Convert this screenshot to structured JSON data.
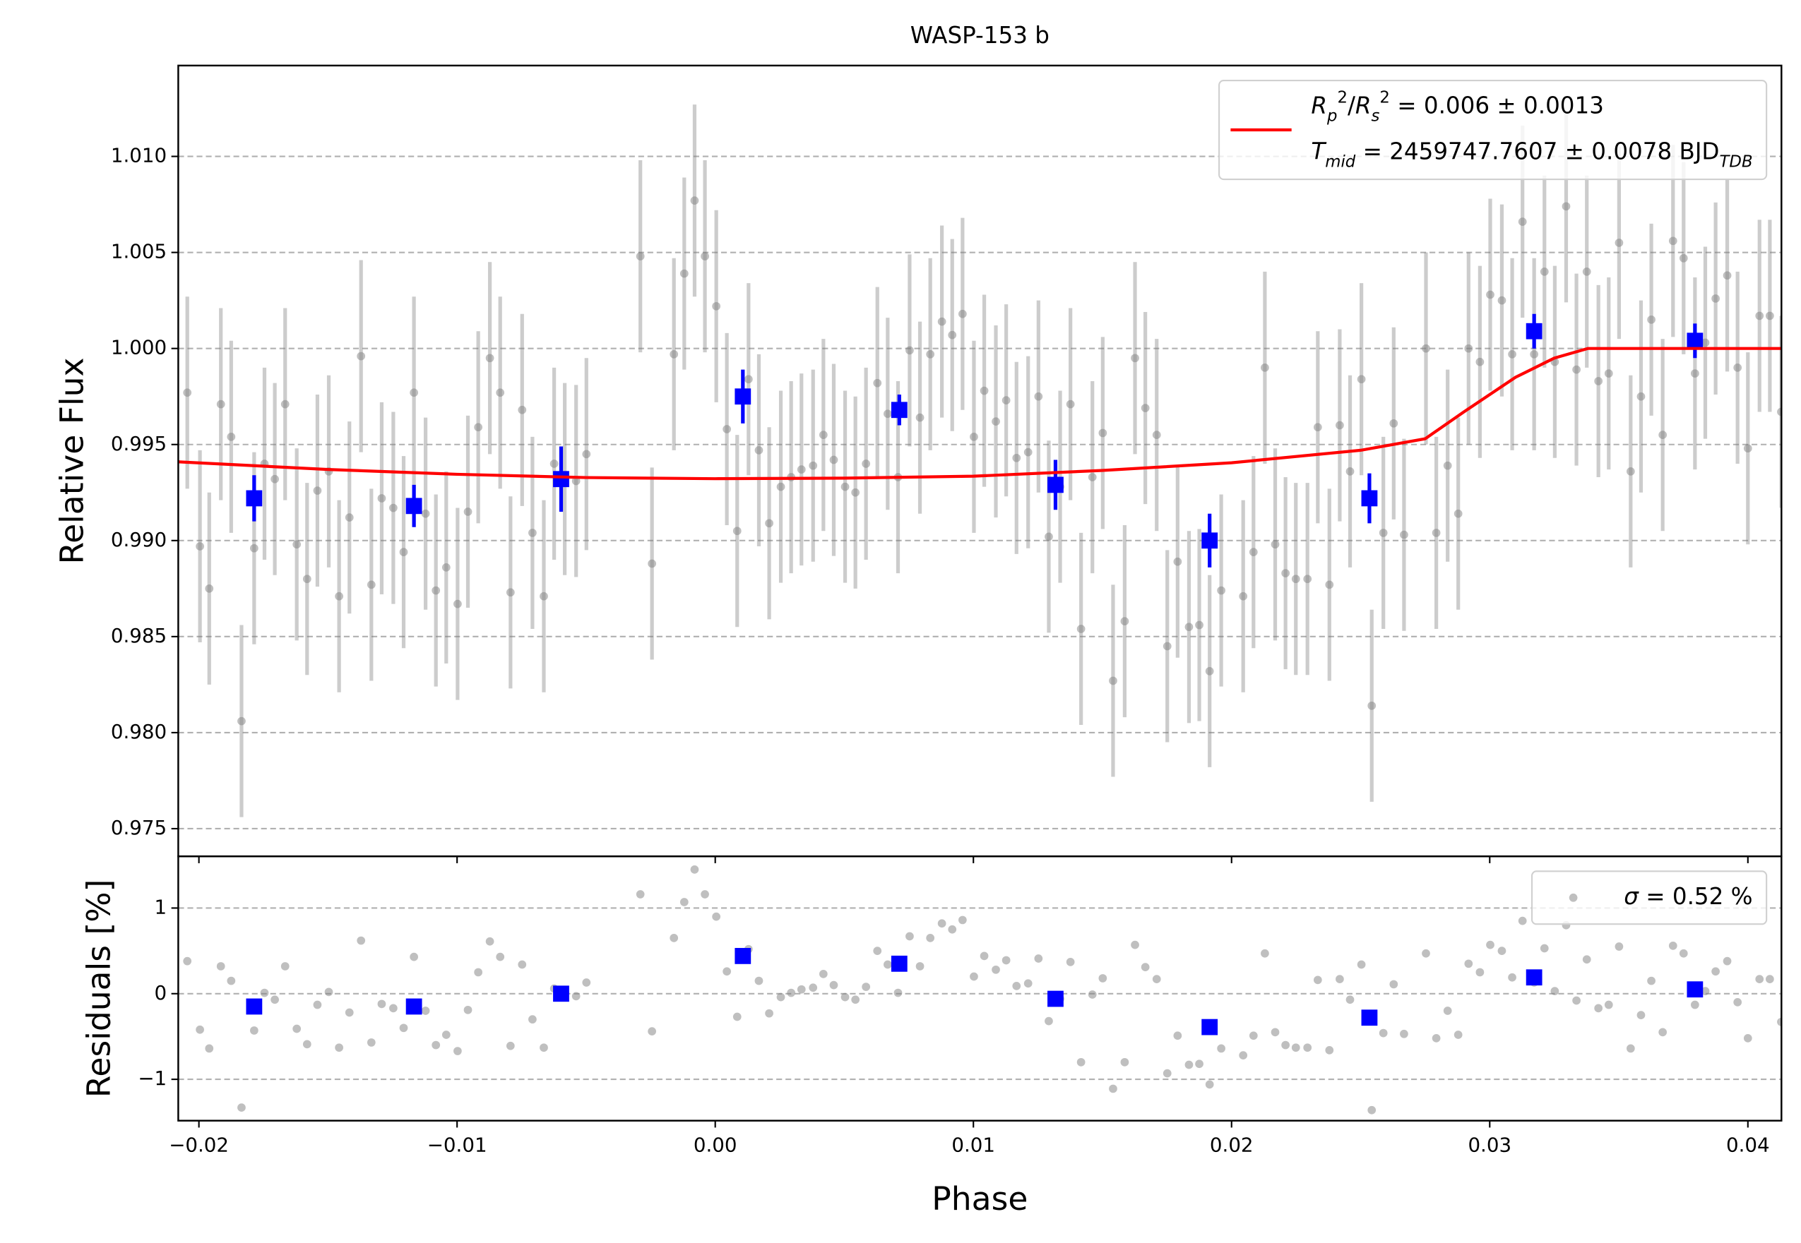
{
  "chart_data": [
    {
      "type": "scatter",
      "title": "WASP-153 b",
      "ylabel": "Relative Flux",
      "xlim": [
        -0.0208,
        0.0413
      ],
      "ylim": [
        0.97356,
        1.01473
      ],
      "yticks": [
        0.975,
        {
          "value": 0.98,
          "label": "0.980"
        },
        0.985,
        {
          "value": 0.99,
          "label": "0.990"
        },
        0.995,
        {
          "value": 1.0,
          "label": "1.000"
        },
        1.005,
        {
          "value": 1.01,
          "label": "1.010"
        }
      ],
      "grid": true,
      "legend": "upper right",
      "series": [
        {
          "kind": "errorbar",
          "marker": "o",
          "color": "#808080",
          "yerr": 0.005,
          "x": [
            -0.02045,
            -0.01996,
            -0.0196,
            -0.01915,
            -0.01875,
            -0.01835,
            -0.01786,
            -0.01746,
            -0.01706,
            -0.01666,
            -0.01621,
            -0.01581,
            -0.01541,
            -0.01497,
            -0.01457,
            -0.01417,
            -0.01372,
            -0.01332,
            -0.01292,
            -0.01247,
            -0.01207,
            -0.01167,
            -0.01122,
            -0.01082,
            -0.01042,
            -0.00998,
            -0.00958,
            -0.00918,
            -0.00873,
            -0.00833,
            -0.00793,
            -0.00748,
            -0.00708,
            -0.00664,
            -0.00624,
            -0.00583,
            -0.00539,
            -0.00499,
            -0.0029,
            -0.00245,
            -0.0016,
            -0.0012,
            -0.0008,
            -0.0004,
            4e-05,
            0.00045,
            0.00085,
            0.00129,
            0.00169,
            0.00209,
            0.00254,
            0.00294,
            0.00334,
            0.00379,
            0.00419,
            0.00459,
            0.00503,
            0.00543,
            0.00584,
            0.00628,
            0.00668,
            0.00708,
            0.00753,
            0.00793,
            0.00833,
            0.00878,
            0.00918,
            0.00958,
            0.01002,
            0.01042,
            0.01087,
            0.01127,
            0.01167,
            0.01212,
            0.01252,
            0.01292,
            0.01336,
            0.01376,
            0.01417,
            0.01461,
            0.01501,
            0.01541,
            0.01586,
            0.01626,
            0.01666,
            0.0171,
            0.01751,
            0.01791,
            0.01835,
            0.01875,
            0.01915,
            0.0196,
            0.02045,
            0.02085,
            0.02129,
            0.02169,
            0.02209,
            0.02249,
            0.02294,
            0.02334,
            0.02379,
            0.02419,
            0.02459,
            0.02503,
            0.02543,
            0.02588,
            0.02628,
            0.02668,
            0.02753,
            0.02793,
            0.02837,
            0.02878,
            0.02918,
            0.02962,
            0.03002,
            0.03047,
            0.03087,
            0.03127,
            0.03172,
            0.03212,
            0.03252,
            0.03296,
            0.03336,
            0.03376,
            0.03421,
            0.03461,
            0.03501,
            0.03546,
            0.03586,
            0.03626,
            0.0367,
            0.0371,
            0.03751,
            0.03795,
            0.03835,
            0.03875,
            0.0392,
            0.0396,
            0.04,
            0.04045,
            0.04085,
            0.04129
          ],
          "values": [
            0.9977,
            0.9897,
            0.9875,
            0.9971,
            0.9954,
            0.9806,
            0.9896,
            0.994,
            0.9932,
            0.9971,
            0.9898,
            0.988,
            0.9926,
            0.9936,
            0.9871,
            0.9912,
            0.9996,
            0.9877,
            0.9922,
            0.9917,
            0.9894,
            0.9977,
            0.9914,
            0.9874,
            0.9886,
            0.9867,
            0.9915,
            0.9959,
            0.9995,
            0.9977,
            0.9873,
            0.9968,
            0.9904,
            0.9871,
            0.994,
            0.9932,
            0.9931,
            0.9945,
            1.0048,
            0.9888,
            0.9997,
            1.0039,
            1.0077,
            1.0048,
            1.0022,
            0.9958,
            0.9905,
            0.9984,
            0.9947,
            0.9909,
            0.9928,
            0.9933,
            0.9937,
            0.9939,
            0.9955,
            0.9942,
            0.9928,
            0.9925,
            0.994,
            0.9982,
            0.9966,
            0.9933,
            0.9999,
            0.9964,
            0.9997,
            1.0014,
            1.0007,
            1.0018,
            0.9954,
            0.9978,
            0.9962,
            0.9973,
            0.9943,
            0.9946,
            0.9975,
            0.9902,
            0.9928,
            0.9971,
            0.9854,
            0.9933,
            0.9956,
            0.9827,
            0.9858,
            0.9995,
            0.9969,
            0.9955,
            0.9845,
            0.9889,
            0.9855,
            0.9856,
            0.9832,
            0.9874,
            0.9871,
            0.9894,
            0.999,
            0.9898,
            0.9883,
            0.988,
            0.988,
            0.9959,
            0.9877,
            0.996,
            0.9936,
            0.9984,
            0.9814,
            0.9904,
            0.9961,
            0.9903,
            1.0,
            0.9904,
            0.9939,
            0.9914,
            1.0,
            0.9993,
            1.0028,
            1.0025,
            0.9997,
            1.0066,
            0.9997,
            1.004,
            0.9993,
            1.0074,
            0.9989,
            1.004,
            0.9983,
            0.9987,
            1.0055,
            0.9936,
            0.9975,
            1.0015,
            0.9955,
            1.0056,
            1.0047,
            0.9987,
            1.0003,
            1.0026,
            1.0038,
            0.999,
            0.9948,
            1.0017,
            1.0017,
            0.9967
          ]
        },
        {
          "kind": "errorbar",
          "marker": "s",
          "color": "#0000ff",
          "x": [
            -0.01786,
            -0.01167,
            -0.00597,
            0.00107,
            0.00713,
            0.01318,
            0.01915,
            0.02534,
            0.03172,
            0.03795
          ],
          "values": [
            0.9922,
            0.9918,
            0.9932,
            0.9975,
            0.9968,
            0.9929,
            0.99,
            0.9922,
            1.0009,
            1.0004
          ],
          "yerr": [
            0.0012,
            0.0011,
            0.0017,
            0.0014,
            0.0008,
            0.0013,
            0.0014,
            0.0013,
            0.0009,
            0.0009
          ]
        },
        {
          "kind": "line",
          "color": "#ff0000",
          "name_parts": [
            [
              {
                "text": "R",
                "style": "italic"
              },
              {
                "text": "p",
                "style": "sub italic"
              },
              {
                "text": "2",
                "style": "sup"
              },
              {
                "text": "/"
              },
              {
                "text": "R",
                "style": "italic"
              },
              {
                "text": "s",
                "style": "sub italic"
              },
              {
                "text": "2",
                "style": "sup"
              },
              {
                "text": " = 0.006 ± 0.0013"
              }
            ],
            [
              {
                "text": "T",
                "style": "italic"
              },
              {
                "text": "mid",
                "style": "sub italic"
              },
              {
                "text": " = 2459747.7607 ± 0.0078 BJD"
              },
              {
                "text": "TDB",
                "style": "sub italic"
              }
            ]
          ],
          "x": [
            -0.0208,
            -0.015,
            -0.01,
            -0.005,
            0.0,
            0.005,
            0.01,
            0.015,
            0.02,
            0.025,
            0.0275,
            0.029,
            0.031,
            0.0325,
            0.0338,
            0.0413
          ],
          "values": [
            0.9941,
            0.9937,
            0.99345,
            0.99328,
            0.99322,
            0.99325,
            0.99335,
            0.99365,
            0.99405,
            0.9947,
            0.9953,
            0.9967,
            0.9985,
            0.9995,
            1.0,
            1.0
          ]
        }
      ]
    },
    {
      "type": "scatter",
      "ylabel": "Residuals [%]",
      "xlabel": "Phase",
      "xlim": [
        -0.0208,
        0.0413
      ],
      "ylim": [
        -1.483,
        1.604
      ],
      "xticks": [
        {
          "value": -0.02,
          "label": "−0.02"
        },
        {
          "value": -0.01,
          "label": "−0.01"
        },
        {
          "value": 0,
          "label": "0.00"
        },
        0.01,
        0.02,
        0.03,
        0.04
      ],
      "yticks": [
        {
          "value": -1,
          "label": "−1"
        },
        0,
        1
      ],
      "grid": true,
      "legend": "upper right",
      "series": [
        {
          "kind": "scatter",
          "marker": "o",
          "color": "#808080",
          "name_parts": [
            [
              {
                "text": "σ",
                "style": "italic"
              },
              {
                "text": " = 0.52 %"
              }
            ]
          ],
          "x": [
            -0.02045,
            -0.01996,
            -0.0196,
            -0.01915,
            -0.01875,
            -0.01835,
            -0.01786,
            -0.01746,
            -0.01706,
            -0.01666,
            -0.01621,
            -0.01581,
            -0.01541,
            -0.01497,
            -0.01457,
            -0.01417,
            -0.01372,
            -0.01332,
            -0.01292,
            -0.01247,
            -0.01207,
            -0.01167,
            -0.01122,
            -0.01082,
            -0.01042,
            -0.00998,
            -0.00958,
            -0.00918,
            -0.00873,
            -0.00833,
            -0.00793,
            -0.00748,
            -0.00708,
            -0.00664,
            -0.00624,
            -0.00583,
            -0.00539,
            -0.00499,
            -0.0029,
            -0.00245,
            -0.0016,
            -0.0012,
            -0.0008,
            -0.0004,
            4e-05,
            0.00045,
            0.00085,
            0.00129,
            0.00169,
            0.00209,
            0.00254,
            0.00294,
            0.00334,
            0.00379,
            0.00419,
            0.00459,
            0.00503,
            0.00543,
            0.00584,
            0.00628,
            0.00668,
            0.00708,
            0.00753,
            0.00793,
            0.00833,
            0.00878,
            0.00918,
            0.00958,
            0.01002,
            0.01042,
            0.01087,
            0.01127,
            0.01167,
            0.01212,
            0.01252,
            0.01292,
            0.01336,
            0.01376,
            0.01417,
            0.01461,
            0.01501,
            0.01541,
            0.01586,
            0.01626,
            0.01666,
            0.0171,
            0.01751,
            0.01791,
            0.01835,
            0.01875,
            0.01915,
            0.0196,
            0.02045,
            0.02085,
            0.02129,
            0.02169,
            0.02209,
            0.02249,
            0.02294,
            0.02334,
            0.02379,
            0.02419,
            0.02459,
            0.02503,
            0.02543,
            0.02588,
            0.02628,
            0.02668,
            0.02753,
            0.02793,
            0.02837,
            0.02878,
            0.02918,
            0.02962,
            0.03002,
            0.03047,
            0.03087,
            0.03127,
            0.03172,
            0.03212,
            0.03252,
            0.03296,
            0.03336,
            0.03376,
            0.03421,
            0.03461,
            0.03501,
            0.03546,
            0.03586,
            0.03626,
            0.0367,
            0.0371,
            0.03751,
            0.03795,
            0.03835,
            0.03875,
            0.0392,
            0.0396,
            0.04,
            0.04045,
            0.04085,
            0.04129
          ],
          "values": [
            0.38,
            -0.42,
            -0.64,
            0.32,
            0.15,
            -1.33,
            -0.43,
            0.01,
            -0.07,
            0.32,
            -0.41,
            -0.59,
            -0.13,
            0.02,
            -0.63,
            -0.22,
            0.62,
            -0.57,
            -0.12,
            -0.17,
            -0.4,
            0.43,
            -0.2,
            -0.6,
            -0.48,
            -0.67,
            -0.19,
            0.25,
            0.61,
            0.43,
            -0.61,
            0.34,
            -0.3,
            -0.63,
            0.06,
            -0.02,
            -0.03,
            0.13,
            1.16,
            -0.44,
            0.65,
            1.07,
            1.45,
            1.16,
            0.9,
            0.26,
            -0.27,
            0.52,
            0.15,
            -0.23,
            -0.04,
            0.01,
            0.05,
            0.07,
            0.23,
            0.1,
            -0.04,
            -0.07,
            0.08,
            0.5,
            0.34,
            0.01,
            0.67,
            0.32,
            0.65,
            0.82,
            0.75,
            0.86,
            0.2,
            0.44,
            0.28,
            0.39,
            0.09,
            0.12,
            0.41,
            -0.32,
            -0.06,
            0.37,
            -0.8,
            -0.01,
            0.18,
            -1.11,
            -0.8,
            0.57,
            0.31,
            0.17,
            -0.93,
            -0.49,
            -0.83,
            -0.82,
            -1.06,
            -0.64,
            -0.72,
            -0.49,
            0.47,
            -0.45,
            -0.6,
            -0.63,
            -0.63,
            0.16,
            -0.66,
            0.17,
            -0.07,
            0.34,
            -1.36,
            -0.46,
            0.11,
            -0.47,
            0.47,
            -0.52,
            -0.2,
            -0.48,
            0.35,
            0.25,
            0.57,
            0.5,
            0.19,
            0.85,
            0.13,
            0.53,
            0.03,
            0.8,
            -0.08,
            0.4,
            -0.17,
            -0.13,
            0.55,
            -0.64,
            -0.25,
            0.15,
            -0.45,
            0.56,
            0.47,
            -0.13,
            0.03,
            0.26,
            0.38,
            -0.1,
            -0.52,
            0.17,
            0.17,
            -0.33
          ]
        },
        {
          "kind": "scatter",
          "marker": "s",
          "color": "#0000ff",
          "x": [
            -0.01786,
            -0.01167,
            -0.00597,
            0.00107,
            0.00713,
            0.01318,
            0.01915,
            0.02534,
            0.03172,
            0.03795
          ],
          "values": [
            -0.15,
            -0.15,
            0.0,
            0.44,
            0.35,
            -0.06,
            -0.39,
            -0.28,
            0.19,
            0.05
          ]
        }
      ]
    }
  ]
}
